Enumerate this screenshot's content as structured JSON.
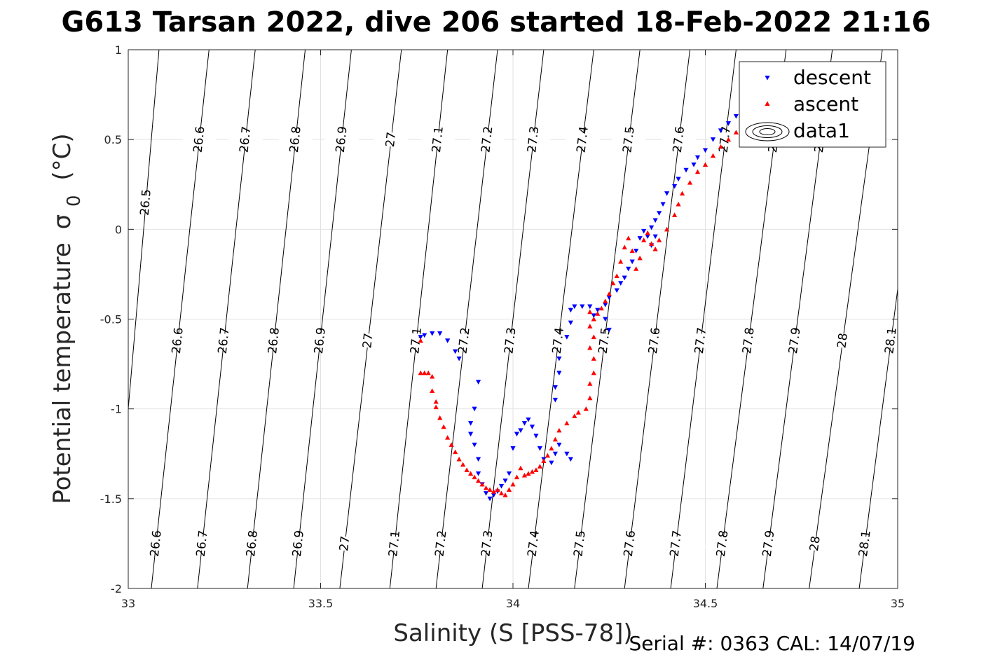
{
  "chart_data": {
    "type": "scatter",
    "title": "G613 Tarsan 2022, dive 206 started 18-Feb-2022 21:16",
    "xlabel": "Salinity (S [PSS-78])",
    "ylabel_main": "Potential temperature",
    "ylabel_symbol": "σ",
    "ylabel_subscript": "0",
    "ylabel_unit": "(°C)",
    "xlim": [
      33,
      35
    ],
    "ylim": [
      -2,
      1
    ],
    "grid": true,
    "xticks": [
      33,
      33.5,
      34,
      34.5,
      35
    ],
    "xtick_labels": [
      "33",
      "33.5",
      "34",
      "34.5",
      "35"
    ],
    "yticks": [
      -2,
      -1.5,
      -1,
      -0.5,
      0,
      0.5,
      1
    ],
    "ytick_labels": [
      "-2",
      "-1.5",
      "-1",
      "-0.5",
      "0",
      "0.5",
      "1"
    ],
    "footer": "Serial #: 0363  CAL: 14/07/19",
    "legend_position": "top-right",
    "legend": [
      {
        "label": "descent",
        "marker": "triangle-down",
        "color": "#0000ff"
      },
      {
        "label": "ascent",
        "marker": "triangle-up",
        "color": "#ff0000"
      },
      {
        "label": "data1",
        "marker": "contour",
        "color": "#000000"
      }
    ],
    "isopycnals": {
      "levels": [
        26.5,
        26.6,
        26.7,
        26.8,
        26.9,
        27,
        27.1,
        27.2,
        27.3,
        27.4,
        27.5,
        27.6,
        27.7,
        27.8,
        27.9,
        28,
        28.1
      ],
      "level_labels": [
        "26.5",
        "26.6",
        "26.7",
        "26.8",
        "26.9",
        "27",
        "27.1",
        "27.2",
        "27.3",
        "27.4",
        "27.5",
        "27.6",
        "27.7",
        "27.8",
        "27.9",
        "28",
        "28.1"
      ],
      "salinity_at_theta_minus2": [
        32.96,
        33.06,
        33.18,
        33.31,
        33.43,
        33.55,
        33.68,
        33.8,
        33.92,
        34.04,
        34.16,
        34.29,
        34.41,
        34.53,
        34.65,
        34.77,
        34.9
      ],
      "salinity_at_theta_plus1": [
        33.08,
        33.21,
        33.33,
        33.46,
        33.58,
        33.71,
        33.83,
        33.96,
        34.08,
        34.21,
        34.33,
        34.46,
        34.58,
        34.71,
        34.83,
        34.96,
        35.08
      ],
      "label_rows_theta": [
        0.5,
        -0.62,
        -1.75
      ],
      "special_label": {
        "level": "26.5",
        "theta": 0.15
      }
    },
    "series": [
      {
        "name": "descent",
        "color": "#0000ff",
        "points": [
          [
            34.58,
            0.63
          ],
          [
            34.56,
            0.59
          ],
          [
            34.54,
            0.55
          ],
          [
            34.52,
            0.5
          ],
          [
            34.5,
            0.44
          ],
          [
            34.48,
            0.4
          ],
          [
            34.47,
            0.36
          ],
          [
            34.45,
            0.33
          ],
          [
            34.43,
            0.28
          ],
          [
            34.42,
            0.24
          ],
          [
            34.4,
            0.2
          ],
          [
            34.39,
            0.14
          ],
          [
            34.38,
            0.09
          ],
          [
            34.37,
            0.05
          ],
          [
            34.36,
            0.01
          ],
          [
            34.37,
            -0.04
          ],
          [
            34.36,
            -0.09
          ],
          [
            34.35,
            -0.04
          ],
          [
            34.34,
            -0.01
          ],
          [
            34.33,
            -0.05
          ],
          [
            34.32,
            -0.12
          ],
          [
            34.31,
            -0.18
          ],
          [
            34.3,
            -0.22
          ],
          [
            34.29,
            -0.27
          ],
          [
            34.28,
            -0.3
          ],
          [
            34.27,
            -0.34
          ],
          [
            34.25,
            -0.38
          ],
          [
            34.24,
            -0.42
          ],
          [
            34.22,
            -0.45
          ],
          [
            34.21,
            -0.48
          ],
          [
            34.25,
            -0.56
          ],
          [
            34.24,
            -0.5
          ],
          [
            34.2,
            -0.43
          ],
          [
            34.18,
            -0.43
          ],
          [
            34.16,
            -0.43
          ],
          [
            34.15,
            -0.45
          ],
          [
            34.15,
            -0.52
          ],
          [
            34.14,
            -0.6
          ],
          [
            34.12,
            -0.72
          ],
          [
            34.12,
            -0.8
          ],
          [
            34.11,
            -0.88
          ],
          [
            34.11,
            -0.95
          ],
          [
            34.15,
            -1.28
          ],
          [
            34.14,
            -1.25
          ],
          [
            34.12,
            -1.2
          ],
          [
            34.11,
            -1.25
          ],
          [
            34.1,
            -1.3
          ],
          [
            34.08,
            -1.28
          ],
          [
            34.07,
            -1.22
          ],
          [
            34.06,
            -1.15
          ],
          [
            34.05,
            -1.1
          ],
          [
            34.04,
            -1.06
          ],
          [
            34.03,
            -1.08
          ],
          [
            34.02,
            -1.12
          ],
          [
            34.01,
            -1.14
          ],
          [
            34.0,
            -1.22
          ],
          [
            33.99,
            -1.36
          ],
          [
            33.98,
            -1.4
          ],
          [
            33.97,
            -1.43
          ],
          [
            33.96,
            -1.46
          ],
          [
            33.95,
            -1.48
          ],
          [
            33.94,
            -1.5
          ],
          [
            33.93,
            -1.47
          ],
          [
            33.92,
            -1.42
          ],
          [
            33.91,
            -1.36
          ],
          [
            33.91,
            -1.28
          ],
          [
            33.9,
            -1.2
          ],
          [
            33.89,
            -1.14
          ],
          [
            33.89,
            -1.08
          ],
          [
            33.9,
            -1.0
          ],
          [
            33.91,
            -0.85
          ],
          [
            33.86,
            -0.72
          ],
          [
            33.85,
            -0.68
          ],
          [
            33.83,
            -0.62
          ],
          [
            33.81,
            -0.58
          ],
          [
            33.79,
            -0.58
          ],
          [
            33.77,
            -0.59
          ],
          [
            33.76,
            -0.6
          ]
        ]
      },
      {
        "name": "ascent",
        "color": "#ff0000",
        "points": [
          [
            34.6,
            0.58
          ],
          [
            34.58,
            0.54
          ],
          [
            34.56,
            0.5
          ],
          [
            34.54,
            0.46
          ],
          [
            34.52,
            0.41
          ],
          [
            34.5,
            0.36
          ],
          [
            34.48,
            0.32
          ],
          [
            34.46,
            0.26
          ],
          [
            34.44,
            0.2
          ],
          [
            34.43,
            0.14
          ],
          [
            34.42,
            0.08
          ],
          [
            34.4,
            0.0
          ],
          [
            34.38,
            -0.06
          ],
          [
            34.37,
            -0.11
          ],
          [
            34.36,
            -0.08
          ],
          [
            34.35,
            -0.02
          ],
          [
            34.34,
            -0.06
          ],
          [
            34.33,
            -0.16
          ],
          [
            34.32,
            -0.22
          ],
          [
            34.31,
            -0.12
          ],
          [
            34.3,
            -0.05
          ],
          [
            34.29,
            -0.1
          ],
          [
            34.28,
            -0.18
          ],
          [
            34.27,
            -0.26
          ],
          [
            34.26,
            -0.3
          ],
          [
            34.25,
            -0.36
          ],
          [
            34.24,
            -0.4
          ],
          [
            34.23,
            -0.44
          ],
          [
            34.22,
            -0.47
          ],
          [
            34.21,
            -0.5
          ],
          [
            34.2,
            -0.46
          ],
          [
            34.2,
            -0.54
          ],
          [
            34.21,
            -0.6
          ],
          [
            34.2,
            -0.66
          ],
          [
            34.21,
            -0.72
          ],
          [
            34.21,
            -0.8
          ],
          [
            34.2,
            -0.86
          ],
          [
            34.2,
            -0.94
          ],
          [
            34.19,
            -1.0
          ],
          [
            34.17,
            -1.02
          ],
          [
            34.16,
            -1.04
          ],
          [
            34.14,
            -1.08
          ],
          [
            34.12,
            -1.12
          ],
          [
            34.11,
            -1.17
          ],
          [
            34.1,
            -1.22
          ],
          [
            34.09,
            -1.26
          ],
          [
            34.08,
            -1.29
          ],
          [
            34.07,
            -1.32
          ],
          [
            34.06,
            -1.34
          ],
          [
            34.05,
            -1.35
          ],
          [
            34.04,
            -1.36
          ],
          [
            34.03,
            -1.37
          ],
          [
            34.02,
            -1.33
          ],
          [
            34.01,
            -1.38
          ],
          [
            34.0,
            -1.42
          ],
          [
            33.99,
            -1.45
          ],
          [
            33.98,
            -1.48
          ],
          [
            33.97,
            -1.47
          ],
          [
            33.96,
            -1.45
          ],
          [
            33.95,
            -1.46
          ],
          [
            33.94,
            -1.45
          ],
          [
            33.93,
            -1.44
          ],
          [
            33.92,
            -1.42
          ],
          [
            33.91,
            -1.4
          ],
          [
            33.9,
            -1.38
          ],
          [
            33.89,
            -1.36
          ],
          [
            33.88,
            -1.34
          ],
          [
            33.87,
            -1.31
          ],
          [
            33.86,
            -1.28
          ],
          [
            33.85,
            -1.24
          ],
          [
            33.84,
            -1.2
          ],
          [
            33.83,
            -1.16
          ],
          [
            33.82,
            -1.1
          ],
          [
            33.81,
            -1.05
          ],
          [
            33.8,
            -0.99
          ],
          [
            33.8,
            -0.96
          ],
          [
            33.79,
            -0.9
          ],
          [
            33.79,
            -0.82
          ],
          [
            33.78,
            -0.8
          ],
          [
            33.77,
            -0.8
          ],
          [
            33.76,
            -0.8
          ],
          [
            33.76,
            -0.62
          ]
        ]
      }
    ]
  },
  "colors": {
    "descent": "#0000ff",
    "ascent": "#ff0000",
    "grid": "#e2e2e2",
    "axis": "#262626",
    "contour": "#000000"
  }
}
